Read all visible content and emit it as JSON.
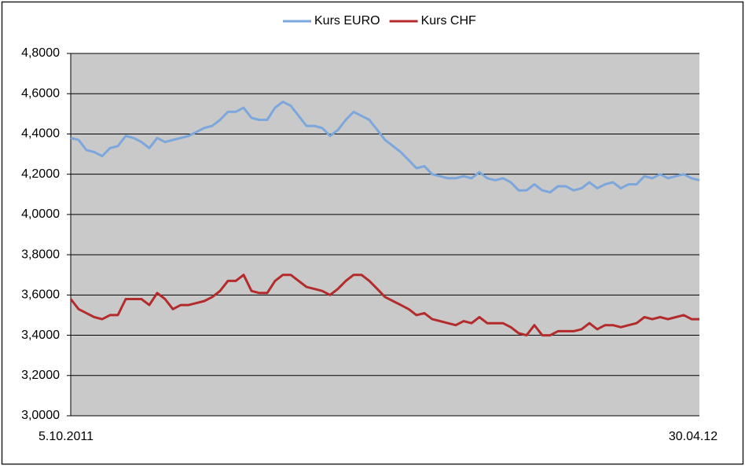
{
  "chart_data": {
    "type": "line",
    "categories": [
      "5.10.2011",
      null,
      null,
      null,
      null,
      null,
      null,
      null,
      null,
      null,
      null,
      null,
      null,
      null,
      null,
      null,
      null,
      null,
      null,
      null,
      null,
      null,
      null,
      null,
      null,
      null,
      null,
      null,
      null,
      null,
      null,
      null,
      null,
      null,
      null,
      null,
      null,
      null,
      null,
      null,
      null,
      null,
      null,
      null,
      null,
      null,
      null,
      null,
      null,
      null,
      null,
      null,
      null,
      null,
      null,
      null,
      null,
      null,
      null,
      null,
      null,
      null,
      null,
      null,
      null,
      null,
      null,
      null,
      null,
      null,
      null,
      null,
      null,
      null,
      null,
      null,
      null,
      null,
      null,
      null,
      "30.04.12"
    ],
    "series": [
      {
        "name": "Kurs EURO",
        "color": "#7ba7dc",
        "values": [
          4.38,
          4.37,
          4.32,
          4.31,
          4.29,
          4.33,
          4.34,
          4.39,
          4.38,
          4.36,
          4.33,
          4.38,
          4.36,
          4.37,
          4.38,
          4.39,
          4.41,
          4.43,
          4.44,
          4.47,
          4.51,
          4.51,
          4.53,
          4.48,
          4.47,
          4.47,
          4.53,
          4.56,
          4.54,
          4.49,
          4.44,
          4.44,
          4.43,
          4.39,
          4.42,
          4.47,
          4.51,
          4.49,
          4.47,
          4.42,
          4.37,
          4.34,
          4.31,
          4.27,
          4.23,
          4.24,
          4.2,
          4.19,
          4.18,
          4.18,
          4.19,
          4.18,
          4.21,
          4.18,
          4.17,
          4.18,
          4.16,
          4.12,
          4.12,
          4.15,
          4.12,
          4.11,
          4.14,
          4.14,
          4.12,
          4.13,
          4.16,
          4.13,
          4.15,
          4.16,
          4.13,
          4.15,
          4.15,
          4.19,
          4.18,
          4.2,
          4.18,
          4.19,
          4.2,
          4.18,
          4.17
        ]
      },
      {
        "name": "Kurs CHF",
        "color": "#b32b2b",
        "values": [
          3.58,
          3.53,
          3.51,
          3.49,
          3.48,
          3.5,
          3.5,
          3.58,
          3.58,
          3.58,
          3.55,
          3.61,
          3.58,
          3.53,
          3.55,
          3.55,
          3.56,
          3.57,
          3.59,
          3.62,
          3.67,
          3.67,
          3.7,
          3.62,
          3.61,
          3.61,
          3.67,
          3.7,
          3.7,
          3.67,
          3.64,
          3.63,
          3.62,
          3.6,
          3.63,
          3.67,
          3.7,
          3.7,
          3.67,
          3.63,
          3.59,
          3.57,
          3.55,
          3.53,
          3.5,
          3.51,
          3.48,
          3.47,
          3.46,
          3.45,
          3.47,
          3.46,
          3.49,
          3.46,
          3.46,
          3.46,
          3.44,
          3.41,
          3.4,
          3.45,
          3.4,
          3.4,
          3.42,
          3.42,
          3.42,
          3.43,
          3.46,
          3.43,
          3.45,
          3.45,
          3.44,
          3.45,
          3.46,
          3.49,
          3.48,
          3.49,
          3.48,
          3.49,
          3.5,
          3.48,
          3.48
        ]
      }
    ],
    "ylim": [
      3,
      4.8
    ],
    "yticks": [
      {
        "value": 3,
        "label": "3,0000"
      },
      {
        "value": 3.2,
        "label": "3,2000"
      },
      {
        "value": 3.4,
        "label": "3,4000"
      },
      {
        "value": 3.6,
        "label": "3,6000"
      },
      {
        "value": 3.8,
        "label": "3,8000"
      },
      {
        "value": 4,
        "label": "4,0000"
      },
      {
        "value": 4.2,
        "label": "4,2000"
      },
      {
        "value": 4.4,
        "label": "4,4000"
      },
      {
        "value": 4.6,
        "label": "4,6000"
      },
      {
        "value": 4.8,
        "label": "4,8000"
      }
    ],
    "grid": true,
    "legend": "top"
  }
}
